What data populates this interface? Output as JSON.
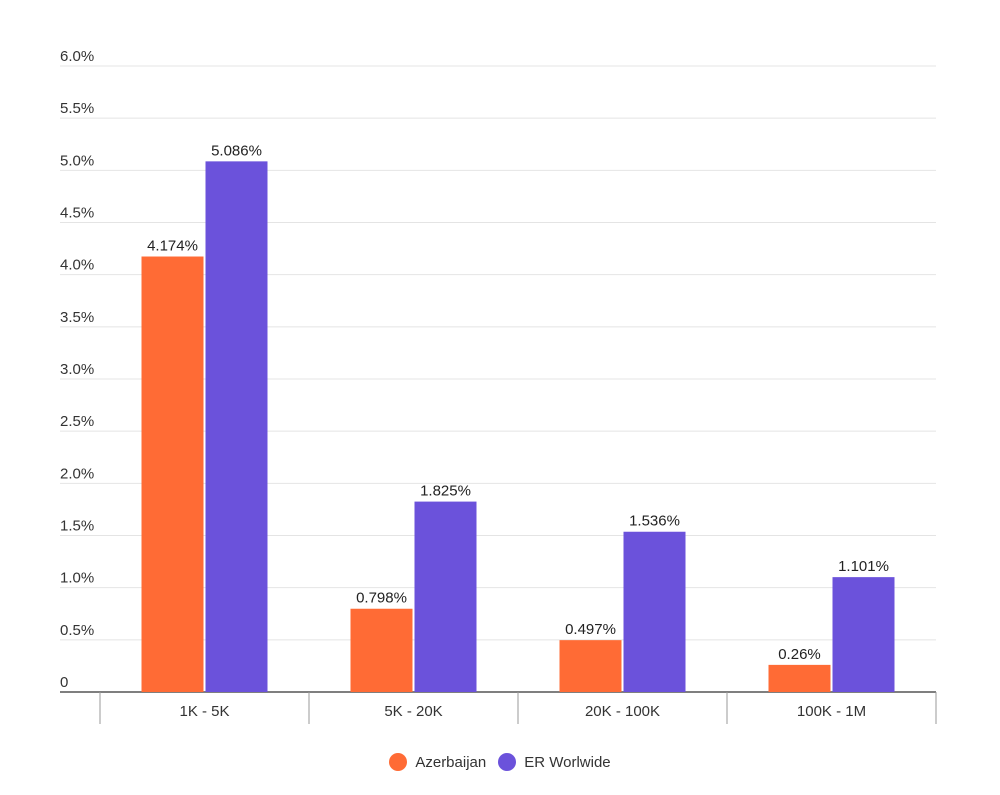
{
  "chart_data": {
    "type": "bar",
    "categories": [
      "1K - 5K",
      "5K - 20K",
      "20K - 100K",
      "100K - 1M"
    ],
    "series": [
      {
        "name": "Azerbaijan",
        "values": [
          4.174,
          0.798,
          0.497,
          0.26
        ],
        "labels": [
          "4.174%",
          "0.798%",
          "0.497%",
          "0.26%"
        ],
        "color": "#ff6b35"
      },
      {
        "name": "ER Worlwide",
        "values": [
          5.086,
          1.825,
          1.536,
          1.101
        ],
        "labels": [
          "5.086%",
          "1.825%",
          "1.536%",
          "1.101%"
        ],
        "color": "#6b52db"
      }
    ],
    "y_ticks": [
      "0",
      "0.5%",
      "1.0%",
      "1.5%",
      "2.0%",
      "2.5%",
      "3.0%",
      "3.5%",
      "4.0%",
      "4.5%",
      "5.0%",
      "5.5%",
      "6.0%"
    ],
    "ylim": [
      0,
      6
    ],
    "grid": true,
    "legend_position": "bottom"
  }
}
